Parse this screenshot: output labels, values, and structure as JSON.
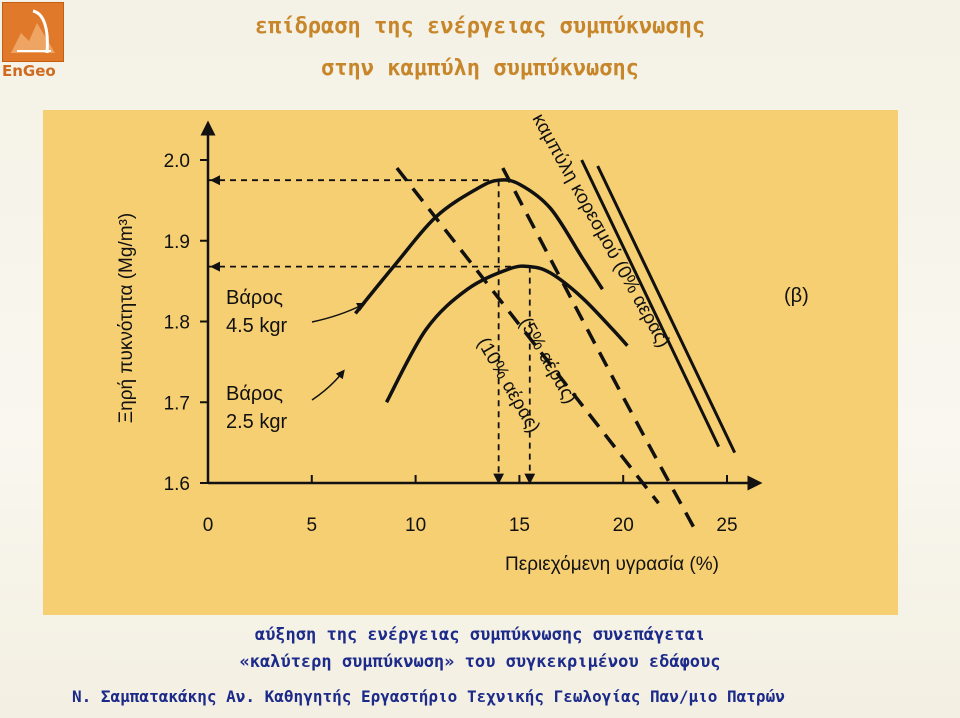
{
  "header": {
    "title_line1": "επίδραση της ενέργειας συμπύκνωσης",
    "title_line2": "στην καμπύλη συμπύκνωσης"
  },
  "logo": {
    "text": "EnGeo",
    "icon": "engeo-logo-icon"
  },
  "caption": {
    "line1": "αύξηση της ενέργειας συμπύκνωσης συνεπάγεται",
    "line2": "«καλύτερη συμπύκνωση» του συγκεκριμένου εδάφους"
  },
  "footer": {
    "text": "Ν. Σαμπατακάκης Αν. Καθηγητής Εργαστήριο Τεχνικής Γεωλογίας Παν/μιο Πατρών"
  },
  "colors": {
    "panel": "#f6cf72",
    "title": "#c8862a",
    "caption": "#1c2a8a",
    "logo": "#e07a2a"
  },
  "chart_data": {
    "type": "line",
    "title": "",
    "xlabel": "Περιεχόμενη υγρασία (%)",
    "ylabel": "Ξηρή πυκνότητα (Mg/m³)",
    "xlim": [
      0,
      25
    ],
    "ylim": [
      1.6,
      2.0
    ],
    "x_ticks": [
      "0",
      "5",
      "10",
      "15",
      "20",
      "25"
    ],
    "y_ticks": [
      "1.6",
      "1.7",
      "1.8",
      "1.9",
      "2.0"
    ],
    "panel_label": "(β)",
    "series": [
      {
        "name": "Βάρος 4.5 kgr",
        "label_line1": "Βάρος",
        "label_line2": "4.5 kgr",
        "style": "solid",
        "points": [
          [
            7.1,
            1.81
          ],
          [
            9.0,
            1.87
          ],
          [
            11.0,
            1.93
          ],
          [
            13.0,
            1.965
          ],
          [
            14.0,
            1.975
          ],
          [
            15.0,
            1.97
          ],
          [
            16.5,
            1.94
          ],
          [
            18.0,
            1.88
          ],
          [
            19.0,
            1.84
          ]
        ]
      },
      {
        "name": "Βάρος 2.5 kgr",
        "label_line1": "Βάρος",
        "label_line2": "2.5 kgr",
        "style": "solid",
        "points": [
          [
            8.6,
            1.7
          ],
          [
            10.5,
            1.79
          ],
          [
            12.5,
            1.84
          ],
          [
            14.5,
            1.865
          ],
          [
            15.5,
            1.868
          ],
          [
            16.5,
            1.86
          ],
          [
            18.0,
            1.83
          ],
          [
            19.5,
            1.79
          ],
          [
            20.2,
            1.77
          ]
        ]
      },
      {
        "name": "καμπύλη κορεσμού (0% αέρας)",
        "style": "solid",
        "points": [
          [
            18.0,
            2.0
          ],
          [
            22.0,
            1.785
          ],
          [
            24.6,
            1.645
          ]
        ]
      },
      {
        "name": "(5% αέρας)",
        "style": "dashed",
        "points": [
          [
            14.2,
            1.99
          ],
          [
            19.8,
            1.716
          ],
          [
            23.4,
            1.545
          ]
        ]
      },
      {
        "name": "(10% αέρας)",
        "style": "dashed",
        "points": [
          [
            9.1,
            1.99
          ],
          [
            16.0,
            1.763
          ],
          [
            21.7,
            1.575
          ]
        ]
      }
    ],
    "optimum_markers": [
      {
        "w": 14.0,
        "density": 1.975
      },
      {
        "w": 15.5,
        "density": 1.868
      }
    ]
  }
}
